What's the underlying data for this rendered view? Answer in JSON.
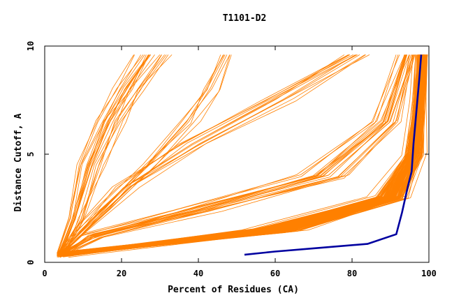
{
  "chart_data": {
    "type": "line",
    "title": "T1101-D2",
    "xlabel": "Percent of Residues (CA)",
    "ylabel": "Distance Cutoff, A",
    "xlim": [
      0,
      100
    ],
    "ylim": [
      0,
      10
    ],
    "x_ticks": [
      "0",
      "20",
      "40",
      "60",
      "80",
      "100"
    ],
    "y_ticks": [
      "0",
      "5",
      "10"
    ],
    "grid": false,
    "legend": "none",
    "colors": {
      "models": "#ff8000",
      "highlight": "#0000a0"
    },
    "highlight_series": {
      "x": [
        52,
        60,
        70,
        84,
        91.5,
        93,
        94.5,
        95.5,
        96,
        96.5,
        97,
        97.5,
        98
      ],
      "y": [
        0.35,
        0.5,
        0.65,
        0.85,
        1.3,
        2.3,
        3.5,
        4.2,
        5.5,
        6.5,
        7.5,
        8.5,
        9.6
      ]
    },
    "model_bundles": [
      {
        "count": 140,
        "x": [
          4.5,
          60,
          90,
          96,
          97.5,
          98.3
        ],
        "y": [
          0.35,
          1.5,
          3.0,
          5.0,
          7.5,
          9.6
        ],
        "spread": [
          3.0,
          10,
          6,
          3.5,
          2.5,
          2.5
        ]
      },
      {
        "count": 22,
        "x": [
          4,
          12,
          38,
          72,
          88,
          94
        ],
        "y": [
          0.35,
          1.2,
          2.4,
          4.0,
          6.5,
          9.6
        ],
        "spread": [
          2,
          5,
          10,
          10,
          6,
          4
        ]
      },
      {
        "count": 12,
        "x": [
          4,
          10,
          22,
          40,
          62,
          82
        ],
        "y": [
          0.35,
          1.5,
          3.5,
          5.5,
          7.5,
          9.6
        ],
        "spread": [
          2,
          4,
          8,
          12,
          12,
          10
        ]
      },
      {
        "count": 22,
        "x": [
          4,
          8,
          12,
          17,
          22,
          28
        ],
        "y": [
          0.35,
          2.0,
          4.5,
          6.5,
          8.0,
          9.6
        ],
        "spread": [
          2,
          3,
          5,
          5,
          6,
          7
        ]
      },
      {
        "count": 8,
        "x": [
          4,
          16,
          28,
          38,
          44,
          48
        ],
        "y": [
          0.35,
          2.5,
          4.5,
          6.5,
          8.0,
          9.6
        ],
        "spread": [
          2,
          5,
          6,
          6,
          6,
          6
        ]
      }
    ]
  }
}
